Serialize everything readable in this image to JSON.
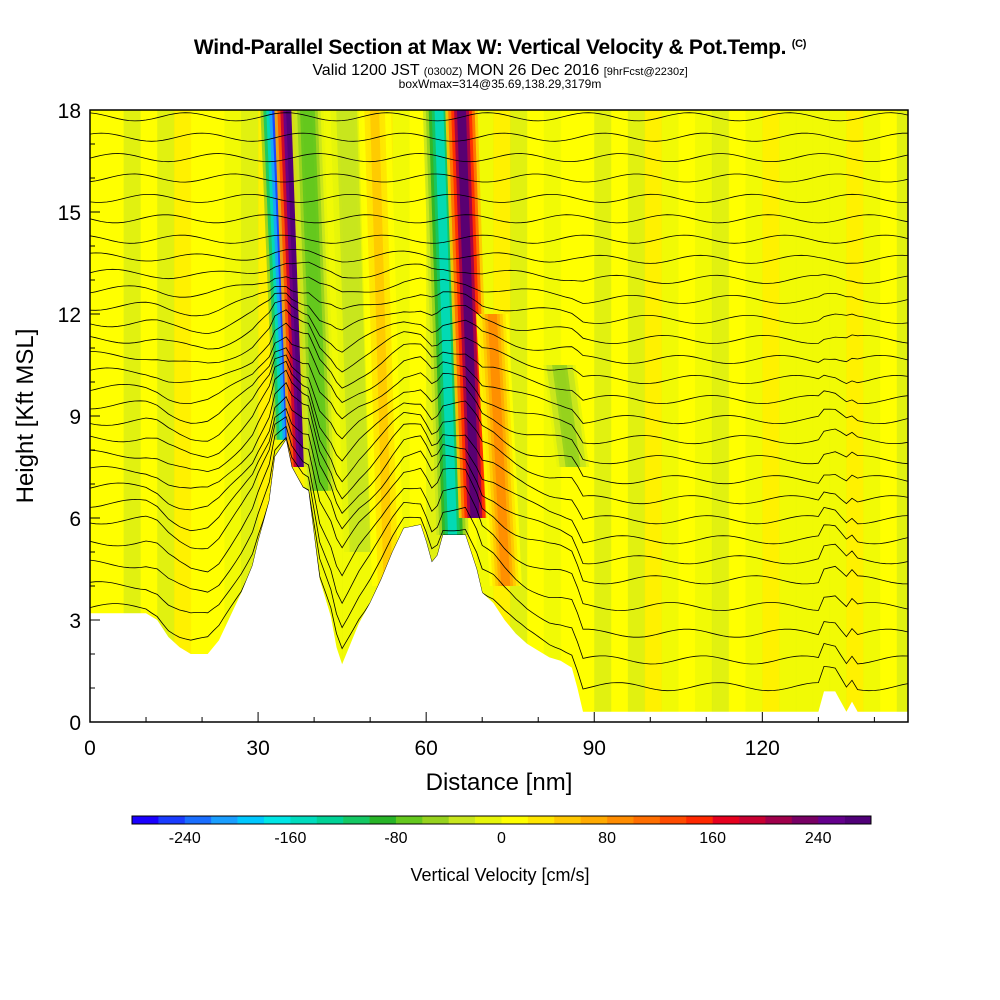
{
  "title": {
    "main": "Wind-Parallel Section at Max W: Vertical Velocity & Pot.Temp.",
    "copyright": "(C)",
    "valid_prefix": "Valid 1200 JST",
    "valid_utc": "(0300Z)",
    "valid_date": "MON 26 Dec 2016",
    "forecast": "[9hrFcst@2230z]",
    "box": "boxWmax=314@35.69,138.29,3179m"
  },
  "chart_data": {
    "type": "heatmap",
    "xlabel": "Distance [nm]",
    "ylabel": "Height [Kft MSL]",
    "xlim": [
      0,
      146
    ],
    "ylim": [
      0,
      18
    ],
    "x_ticks": [
      0,
      30,
      60,
      90,
      120
    ],
    "y_ticks": [
      0,
      3,
      6,
      9,
      12,
      15,
      18
    ],
    "colorbar": {
      "label": "Vertical Velocity [cm/s]",
      "min": -280,
      "max": 280,
      "step": 20,
      "tick_values": [
        -240,
        -160,
        -80,
        0,
        80,
        160,
        240
      ],
      "colors": [
        "#1a00ff",
        "#1a3cff",
        "#1a6eff",
        "#1a9eff",
        "#00c8ff",
        "#00e6e6",
        "#00dcbe",
        "#00d296",
        "#14c864",
        "#28b428",
        "#64c81e",
        "#96d21e",
        "#c8e61e",
        "#e6f50a",
        "#ffff00",
        "#ffe600",
        "#ffc800",
        "#ffaa00",
        "#ff8c00",
        "#ff6e00",
        "#ff4b00",
        "#ff2800",
        "#e6001e",
        "#c80032",
        "#a0004b",
        "#780064",
        "#64008c",
        "#500078"
      ]
    },
    "terrain_kft": [
      [
        0,
        3.2
      ],
      [
        10,
        3.2
      ],
      [
        12,
        3.0
      ],
      [
        14,
        2.5
      ],
      [
        16,
        2.2
      ],
      [
        18,
        2.0
      ],
      [
        21,
        2.0
      ],
      [
        23,
        2.4
      ],
      [
        25,
        3.1
      ],
      [
        27,
        3.8
      ],
      [
        29,
        4.6
      ],
      [
        30,
        5.3
      ],
      [
        32,
        6.5
      ],
      [
        33,
        7.8
      ],
      [
        35,
        8.3
      ],
      [
        36,
        7.5
      ],
      [
        38,
        6.9
      ],
      [
        39,
        6.8
      ],
      [
        40,
        5.5
      ],
      [
        41,
        4.2
      ],
      [
        43,
        3.1
      ],
      [
        44,
        2.2
      ],
      [
        45,
        1.7
      ],
      [
        46,
        2.1
      ],
      [
        48,
        2.9
      ],
      [
        50,
        3.5
      ],
      [
        52,
        4.2
      ],
      [
        54,
        5.0
      ],
      [
        56,
        5.7
      ],
      [
        59,
        5.8
      ],
      [
        60,
        5.3
      ],
      [
        61,
        4.7
      ],
      [
        62,
        4.9
      ],
      [
        63,
        5.5
      ],
      [
        67,
        5.5
      ],
      [
        68,
        5.0
      ],
      [
        69,
        4.5
      ],
      [
        70,
        3.8
      ],
      [
        72,
        3.5
      ],
      [
        74,
        3.0
      ],
      [
        76,
        2.6
      ],
      [
        78,
        2.3
      ],
      [
        80,
        2.1
      ],
      [
        82,
        1.9
      ],
      [
        84,
        1.8
      ],
      [
        86,
        1.6
      ],
      [
        87,
        1.0
      ],
      [
        88,
        0.3
      ],
      [
        90,
        0.3
      ],
      [
        92,
        0.3
      ],
      [
        130,
        0.3
      ],
      [
        131,
        0.9
      ],
      [
        133,
        0.9
      ],
      [
        134,
        0.6
      ],
      [
        135,
        0.3
      ],
      [
        136,
        0.6
      ],
      [
        137,
        0.3
      ],
      [
        146,
        0.3
      ]
    ],
    "features": [
      {
        "type": "downdraft",
        "x": 34.5,
        "top": 18,
        "bottom": 8.3,
        "peak": -260
      },
      {
        "type": "updraft",
        "x": 37.0,
        "top": 18,
        "bottom": 7.5,
        "peak": 300
      },
      {
        "type": "downdraft",
        "x": 40.0,
        "top": 18,
        "bottom": 6.8,
        "peak": -80
      },
      {
        "type": "downdraft",
        "x": 47.0,
        "top": 18,
        "bottom": 5.0,
        "peak": -40
      },
      {
        "type": "updraft",
        "x": 52.0,
        "top": 18,
        "bottom": 4.0,
        "peak": 40
      },
      {
        "type": "downdraft",
        "x": 63.5,
        "top": 18,
        "bottom": 5.5,
        "peak": -150
      },
      {
        "type": "updraft",
        "x": 67.5,
        "top": 18,
        "bottom": 6.0,
        "peak": 260
      },
      {
        "type": "updraft",
        "x": 73.0,
        "top": 12,
        "bottom": 4.0,
        "peak": 90
      },
      {
        "type": "downdraft",
        "x": 85.0,
        "top": 10.5,
        "bottom": 7.5,
        "peak": -60
      }
    ],
    "isentrope_levels_kft": [
      0.8,
      1.6,
      2.4,
      3.2,
      4.0,
      4.6,
      5.2,
      5.8,
      6.4,
      7.0,
      7.6,
      8.2,
      8.8,
      9.4,
      10.0,
      10.6,
      11.2,
      11.8,
      12.4,
      13.0,
      13.6,
      14.2,
      14.8,
      15.4,
      16.0,
      16.6,
      17.2,
      17.8
    ]
  }
}
